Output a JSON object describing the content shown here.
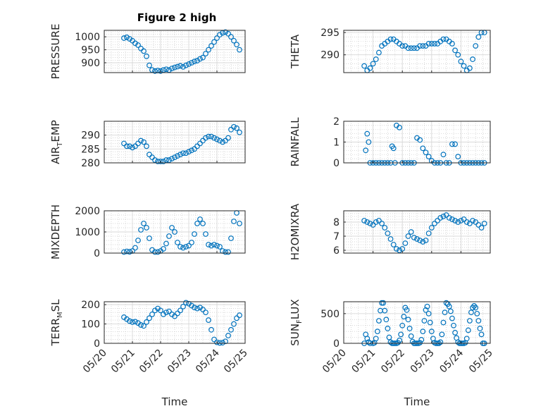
{
  "figure": {
    "title": "Figure 2 high"
  },
  "chart_data": [
    {
      "type": "scatter",
      "title": "Figure 2 high",
      "ylabel": "PRESSURE",
      "ylim": [
        862,
        1025
      ],
      "yticks": [
        900,
        950,
        1000
      ],
      "yticklabels": [
        "900",
        "950",
        "1000"
      ],
      "xlim": [
        "05/20",
        "05/25"
      ],
      "xticklabels": [],
      "grid": true,
      "marker": "open-circle",
      "color": "#0072BD",
      "x": [
        20.7,
        20.8,
        20.9,
        21.0,
        21.1,
        21.2,
        21.3,
        21.4,
        21.5,
        21.6,
        21.7,
        21.8,
        21.9,
        22.0,
        22.1,
        22.2,
        22.3,
        22.4,
        22.5,
        22.6,
        22.7,
        22.8,
        22.9,
        23.0,
        23.1,
        23.2,
        23.3,
        23.4,
        23.5,
        23.6,
        23.7,
        23.8,
        23.9,
        24.0,
        24.1,
        24.2,
        24.3,
        24.4,
        24.5,
        24.6,
        24.7,
        24.8
      ],
      "y": [
        995,
        998,
        992,
        985,
        975,
        968,
        955,
        945,
        925,
        890,
        872,
        868,
        870,
        868,
        872,
        875,
        872,
        878,
        882,
        885,
        888,
        884,
        890,
        895,
        900,
        905,
        908,
        915,
        920,
        935,
        950,
        965,
        980,
        995,
        1008,
        1015,
        1018,
        1012,
        1000,
        985,
        970,
        950
      ]
    },
    {
      "type": "scatter",
      "ylabel": "THETA",
      "ylim": [
        286,
        295.5
      ],
      "yticks": [
        290,
        295
      ],
      "yticklabels": [
        "290",
        "295"
      ],
      "xlim": [
        "05/20",
        "05/25"
      ],
      "xticklabels": [],
      "grid": true,
      "marker": "open-circle",
      "color": "#0072BD",
      "x": [
        20.7,
        20.8,
        20.9,
        21.0,
        21.1,
        21.2,
        21.3,
        21.4,
        21.5,
        21.6,
        21.7,
        21.8,
        21.9,
        22.0,
        22.1,
        22.2,
        22.3,
        22.4,
        22.5,
        22.6,
        22.7,
        22.8,
        22.9,
        23.0,
        23.1,
        23.2,
        23.3,
        23.4,
        23.5,
        23.6,
        23.7,
        23.8,
        23.9,
        24.0,
        24.1,
        24.2,
        24.3,
        24.4,
        24.5,
        24.6,
        24.7,
        24.8
      ],
      "y": [
        287.5,
        286.5,
        287,
        288,
        289,
        290.5,
        292,
        292.5,
        293,
        293.5,
        293.5,
        293,
        292.5,
        292,
        292,
        291.5,
        291.5,
        291.5,
        291.5,
        292,
        292,
        292,
        292.5,
        292.5,
        292.5,
        292.5,
        293,
        293.5,
        293.5,
        293,
        292.5,
        291,
        290,
        288.5,
        287.5,
        286.5,
        287,
        289,
        292,
        294,
        295,
        295
      ]
    },
    {
      "type": "scatter",
      "ylabel": "AIR_TEMP",
      "ylim": [
        280,
        295
      ],
      "yticks": [
        280,
        285,
        290
      ],
      "yticklabels": [
        "280",
        "285",
        "290"
      ],
      "xlim": [
        "05/20",
        "05/25"
      ],
      "xticklabels": [],
      "grid": true,
      "marker": "open-circle",
      "color": "#0072BD",
      "x": [
        20.7,
        20.8,
        20.9,
        21.0,
        21.1,
        21.2,
        21.3,
        21.4,
        21.5,
        21.6,
        21.7,
        21.8,
        21.9,
        22.0,
        22.1,
        22.2,
        22.3,
        22.4,
        22.5,
        22.6,
        22.7,
        22.8,
        22.9,
        23.0,
        23.1,
        23.2,
        23.3,
        23.4,
        23.5,
        23.6,
        23.7,
        23.8,
        23.9,
        24.0,
        24.1,
        24.2,
        24.3,
        24.4,
        24.5,
        24.6,
        24.7,
        24.8
      ],
      "y": [
        287,
        286,
        286,
        285.5,
        286,
        287,
        288,
        287.5,
        286,
        283,
        282,
        281,
        280.5,
        280.5,
        280.5,
        281,
        281,
        281.5,
        282,
        282.5,
        283,
        283.5,
        283.5,
        284,
        284.5,
        285,
        286,
        287,
        288,
        289,
        289.5,
        289.5,
        289,
        288.5,
        288,
        287.5,
        288,
        289,
        292,
        293,
        292.5,
        291
      ]
    },
    {
      "type": "scatter",
      "ylabel": "RAINFALL",
      "ylim": [
        0,
        2
      ],
      "yticks": [
        0,
        1,
        2
      ],
      "yticklabels": [
        "0",
        "1",
        "2"
      ],
      "xlim": [
        "05/20",
        "05/25"
      ],
      "xticklabels": [],
      "grid": true,
      "marker": "open-circle",
      "color": "#0072BD",
      "x": [
        20.75,
        20.8,
        20.85,
        20.9,
        21.0,
        21.1,
        21.2,
        21.3,
        21.4,
        21.5,
        21.6,
        21.65,
        21.7,
        21.75,
        21.8,
        21.9,
        22.0,
        22.1,
        22.2,
        22.3,
        22.4,
        22.5,
        22.6,
        22.7,
        22.8,
        22.9,
        23.0,
        23.1,
        23.2,
        23.3,
        23.4,
        23.5,
        23.6,
        23.7,
        23.8,
        23.9,
        24.0,
        24.1,
        24.2,
        24.3,
        24.4,
        24.5,
        24.6,
        24.7,
        24.8
      ],
      "y": [
        0.6,
        1.4,
        1.0,
        0,
        0,
        0,
        0,
        0,
        0,
        0,
        0,
        0.8,
        0.7,
        0,
        1.8,
        1.7,
        0,
        0,
        0,
        0,
        0,
        1.2,
        1.1,
        0.7,
        0.5,
        0.3,
        0.1,
        0,
        0,
        0,
        0.4,
        0,
        0,
        0.9,
        0.9,
        0.3,
        0,
        0,
        0,
        0,
        0,
        0,
        0,
        0,
        0
      ]
    },
    {
      "type": "scatter",
      "ylabel": "MIXDEPTH",
      "ylim": [
        0,
        2000
      ],
      "yticks": [
        0,
        1000,
        2000
      ],
      "yticklabels": [
        "0",
        "1000",
        "2000"
      ],
      "xlim": [
        "05/20",
        "05/25"
      ],
      "xticklabels": [],
      "grid": true,
      "marker": "open-circle",
      "color": "#0072BD",
      "x": [
        20.7,
        20.8,
        20.9,
        21.0,
        21.1,
        21.2,
        21.3,
        21.4,
        21.5,
        21.6,
        21.7,
        21.8,
        21.9,
        22.0,
        22.1,
        22.2,
        22.3,
        22.4,
        22.5,
        22.6,
        22.7,
        22.8,
        22.9,
        23.0,
        23.1,
        23.2,
        23.3,
        23.4,
        23.5,
        23.6,
        23.7,
        23.8,
        23.9,
        24.0,
        24.1,
        24.2,
        24.3,
        24.4,
        24.5,
        24.6,
        24.7,
        24.8
      ],
      "y": [
        50,
        80,
        60,
        100,
        250,
        600,
        1100,
        1400,
        1200,
        700,
        150,
        50,
        50,
        100,
        200,
        450,
        800,
        1200,
        1000,
        500,
        300,
        250,
        300,
        350,
        500,
        900,
        1400,
        1600,
        1400,
        900,
        400,
        350,
        400,
        350,
        300,
        100,
        50,
        50,
        700,
        1500,
        1900,
        1400
      ]
    },
    {
      "type": "scatter",
      "ylabel": "H2OMIXRA",
      "ylim": [
        5.8,
        8.8
      ],
      "yticks": [
        6,
        7,
        8
      ],
      "yticklabels": [
        "6",
        "7",
        "8"
      ],
      "xlim": [
        "05/20",
        "05/25"
      ],
      "xticklabels": [],
      "grid": true,
      "marker": "open-circle",
      "color": "#0072BD",
      "x": [
        20.7,
        20.8,
        20.9,
        21.0,
        21.1,
        21.2,
        21.3,
        21.4,
        21.5,
        21.6,
        21.7,
        21.8,
        21.9,
        22.0,
        22.1,
        22.2,
        22.3,
        22.4,
        22.5,
        22.6,
        22.7,
        22.8,
        22.9,
        23.0,
        23.1,
        23.2,
        23.3,
        23.4,
        23.5,
        23.6,
        23.7,
        23.8,
        23.9,
        24.0,
        24.1,
        24.2,
        24.3,
        24.4,
        24.5,
        24.6,
        24.7,
        24.8
      ],
      "y": [
        8.1,
        8.0,
        7.9,
        7.8,
        8.0,
        8.1,
        7.9,
        7.6,
        7.2,
        6.8,
        6.4,
        6.1,
        6.0,
        6.1,
        6.5,
        7.0,
        7.3,
        6.9,
        6.8,
        6.7,
        6.6,
        6.7,
        7.2,
        7.6,
        7.9,
        8.1,
        8.3,
        8.4,
        8.5,
        8.3,
        8.2,
        8.1,
        8.0,
        8.1,
        8.2,
        8.0,
        7.9,
        8.1,
        8.0,
        7.8,
        7.6,
        7.9
      ]
    },
    {
      "type": "scatter",
      "ylabel": "TERR_MSL",
      "ylim": [
        0,
        215
      ],
      "yticks": [
        0,
        100,
        200
      ],
      "yticklabels": [
        "0",
        "100",
        "200"
      ],
      "xlim": [
        "05/20",
        "05/25"
      ],
      "xticklabels": [
        "05/20",
        "05/21",
        "05/22",
        "05/23",
        "05/24",
        "05/25"
      ],
      "xlabel": "Time",
      "grid": true,
      "marker": "open-circle",
      "color": "#0072BD",
      "x": [
        20.7,
        20.8,
        20.9,
        21.0,
        21.1,
        21.2,
        21.3,
        21.4,
        21.5,
        21.6,
        21.7,
        21.8,
        21.9,
        22.0,
        22.1,
        22.2,
        22.3,
        22.4,
        22.5,
        22.6,
        22.7,
        22.8,
        22.9,
        23.0,
        23.1,
        23.2,
        23.3,
        23.4,
        23.5,
        23.6,
        23.7,
        23.8,
        23.9,
        24.0,
        24.1,
        24.2,
        24.3,
        24.4,
        24.5,
        24.6,
        24.7,
        24.8
      ],
      "y": [
        135,
        125,
        115,
        110,
        112,
        105,
        95,
        90,
        110,
        130,
        150,
        170,
        180,
        170,
        150,
        160,
        165,
        150,
        140,
        155,
        170,
        190,
        210,
        205,
        195,
        185,
        180,
        185,
        175,
        160,
        120,
        70,
        20,
        5,
        2,
        3,
        10,
        40,
        70,
        100,
        130,
        145
      ]
    },
    {
      "type": "scatter",
      "ylabel": "SUN_FLUX",
      "ylim": [
        0,
        700
      ],
      "yticks": [
        0,
        500
      ],
      "yticklabels": [
        "0",
        "500"
      ],
      "xlim": [
        "05/20",
        "05/25"
      ],
      "xticklabels": [
        "05/20",
        "05/21",
        "05/22",
        "05/23",
        "05/24",
        "05/25"
      ],
      "xlabel": "Time",
      "grid": true,
      "marker": "open-circle",
      "color": "#0072BD",
      "x": [
        20.7,
        20.75,
        20.8,
        20.85,
        20.9,
        21.0,
        21.05,
        21.1,
        21.15,
        21.2,
        21.25,
        21.3,
        21.35,
        21.4,
        21.45,
        21.5,
        21.55,
        21.6,
        21.65,
        21.7,
        21.75,
        21.8,
        21.85,
        21.9,
        21.95,
        22.0,
        22.05,
        22.1,
        22.15,
        22.2,
        22.25,
        22.3,
        22.35,
        22.4,
        22.45,
        22.5,
        22.55,
        22.6,
        22.65,
        22.7,
        22.75,
        22.8,
        22.85,
        22.9,
        22.95,
        23.0,
        23.05,
        23.1,
        23.15,
        23.2,
        23.25,
        23.3,
        23.35,
        23.4,
        23.45,
        23.5,
        23.55,
        23.6,
        23.65,
        23.7,
        23.75,
        23.8,
        23.85,
        23.9,
        23.95,
        24.0,
        24.05,
        24.1,
        24.15,
        24.2,
        24.25,
        24.3,
        24.35,
        24.4,
        24.45,
        24.5,
        24.55,
        24.6,
        24.65,
        24.7,
        24.75,
        24.8
      ],
      "y": [
        0,
        150,
        80,
        20,
        0,
        0,
        10,
        80,
        200,
        380,
        550,
        680,
        680,
        550,
        400,
        250,
        100,
        20,
        0,
        0,
        0,
        0,
        10,
        50,
        150,
        300,
        450,
        600,
        560,
        400,
        250,
        120,
        30,
        0,
        0,
        0,
        0,
        10,
        60,
        200,
        380,
        560,
        620,
        500,
        350,
        200,
        80,
        10,
        0,
        0,
        0,
        20,
        150,
        350,
        520,
        680,
        660,
        620,
        540,
        420,
        300,
        180,
        90,
        20,
        0,
        0,
        0,
        0,
        10,
        80,
        220,
        380,
        520,
        600,
        630,
        600,
        500,
        380,
        250,
        150,
        0,
        0
      ]
    }
  ]
}
